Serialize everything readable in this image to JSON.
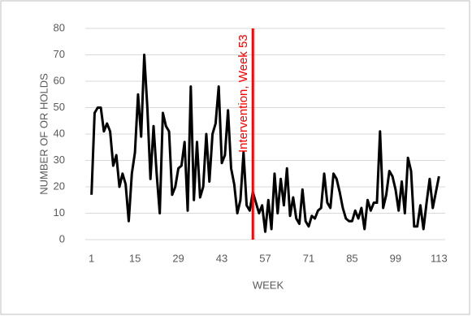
{
  "chart_data": {
    "type": "line",
    "x_label": "WEEK",
    "y_label": "NUMBER OF OR HOLDS",
    "x": [
      1,
      2,
      3,
      4,
      5,
      6,
      7,
      8,
      9,
      10,
      11,
      12,
      13,
      14,
      15,
      16,
      17,
      18,
      19,
      20,
      21,
      22,
      23,
      24,
      25,
      26,
      27,
      28,
      29,
      30,
      31,
      32,
      33,
      34,
      35,
      36,
      37,
      38,
      39,
      40,
      41,
      42,
      43,
      44,
      45,
      46,
      47,
      48,
      49,
      50,
      51,
      52,
      53,
      54,
      55,
      56,
      57,
      58,
      59,
      60,
      61,
      62,
      63,
      64,
      65,
      66,
      67,
      68,
      69,
      70,
      71,
      72,
      73,
      74,
      75,
      76,
      77,
      78,
      79,
      80,
      81,
      82,
      83,
      84,
      85,
      86,
      87,
      88,
      89,
      90,
      91,
      92,
      93,
      94,
      95,
      96,
      97,
      98,
      99,
      100,
      101,
      102,
      103,
      104,
      105,
      106,
      107,
      108,
      109,
      110,
      111,
      112,
      113
    ],
    "series": [
      {
        "color": "#000000",
        "values": [
          17,
          48,
          50,
          50,
          41,
          44,
          41,
          28,
          32,
          20,
          25,
          21,
          7,
          25,
          33,
          55,
          39,
          70,
          50,
          23,
          43,
          25,
          10,
          48,
          43,
          41,
          17,
          20,
          27,
          28,
          37,
          11,
          58,
          15,
          37,
          16,
          20,
          40,
          22,
          40,
          44,
          58,
          29,
          32,
          49,
          27,
          21,
          10,
          15,
          33,
          13,
          11,
          18,
          14,
          10,
          13,
          3,
          15,
          4,
          25,
          10,
          23,
          13,
          27,
          9,
          16,
          8,
          6,
          19,
          7,
          5,
          9,
          8,
          11,
          12,
          25,
          14,
          12,
          25,
          23,
          18,
          12,
          8,
          7,
          7,
          11,
          8,
          12,
          4,
          15,
          11,
          14,
          14,
          41,
          12,
          17,
          26,
          24,
          19,
          11,
          22,
          10,
          31,
          26,
          5,
          5,
          13,
          4,
          14,
          23,
          12,
          18,
          24
        ]
      }
    ],
    "annotation": {
      "x": 53,
      "label": "Intervention, Week 53",
      "color": "#ff0000"
    },
    "xlim": [
      -1,
      115
    ],
    "xticks": [
      1,
      15,
      29,
      43,
      57,
      71,
      85,
      99,
      113
    ],
    "ylim": [
      0,
      80
    ],
    "yticks": [
      0,
      10,
      20,
      30,
      40,
      50,
      60,
      70,
      80
    ],
    "grid": true
  }
}
